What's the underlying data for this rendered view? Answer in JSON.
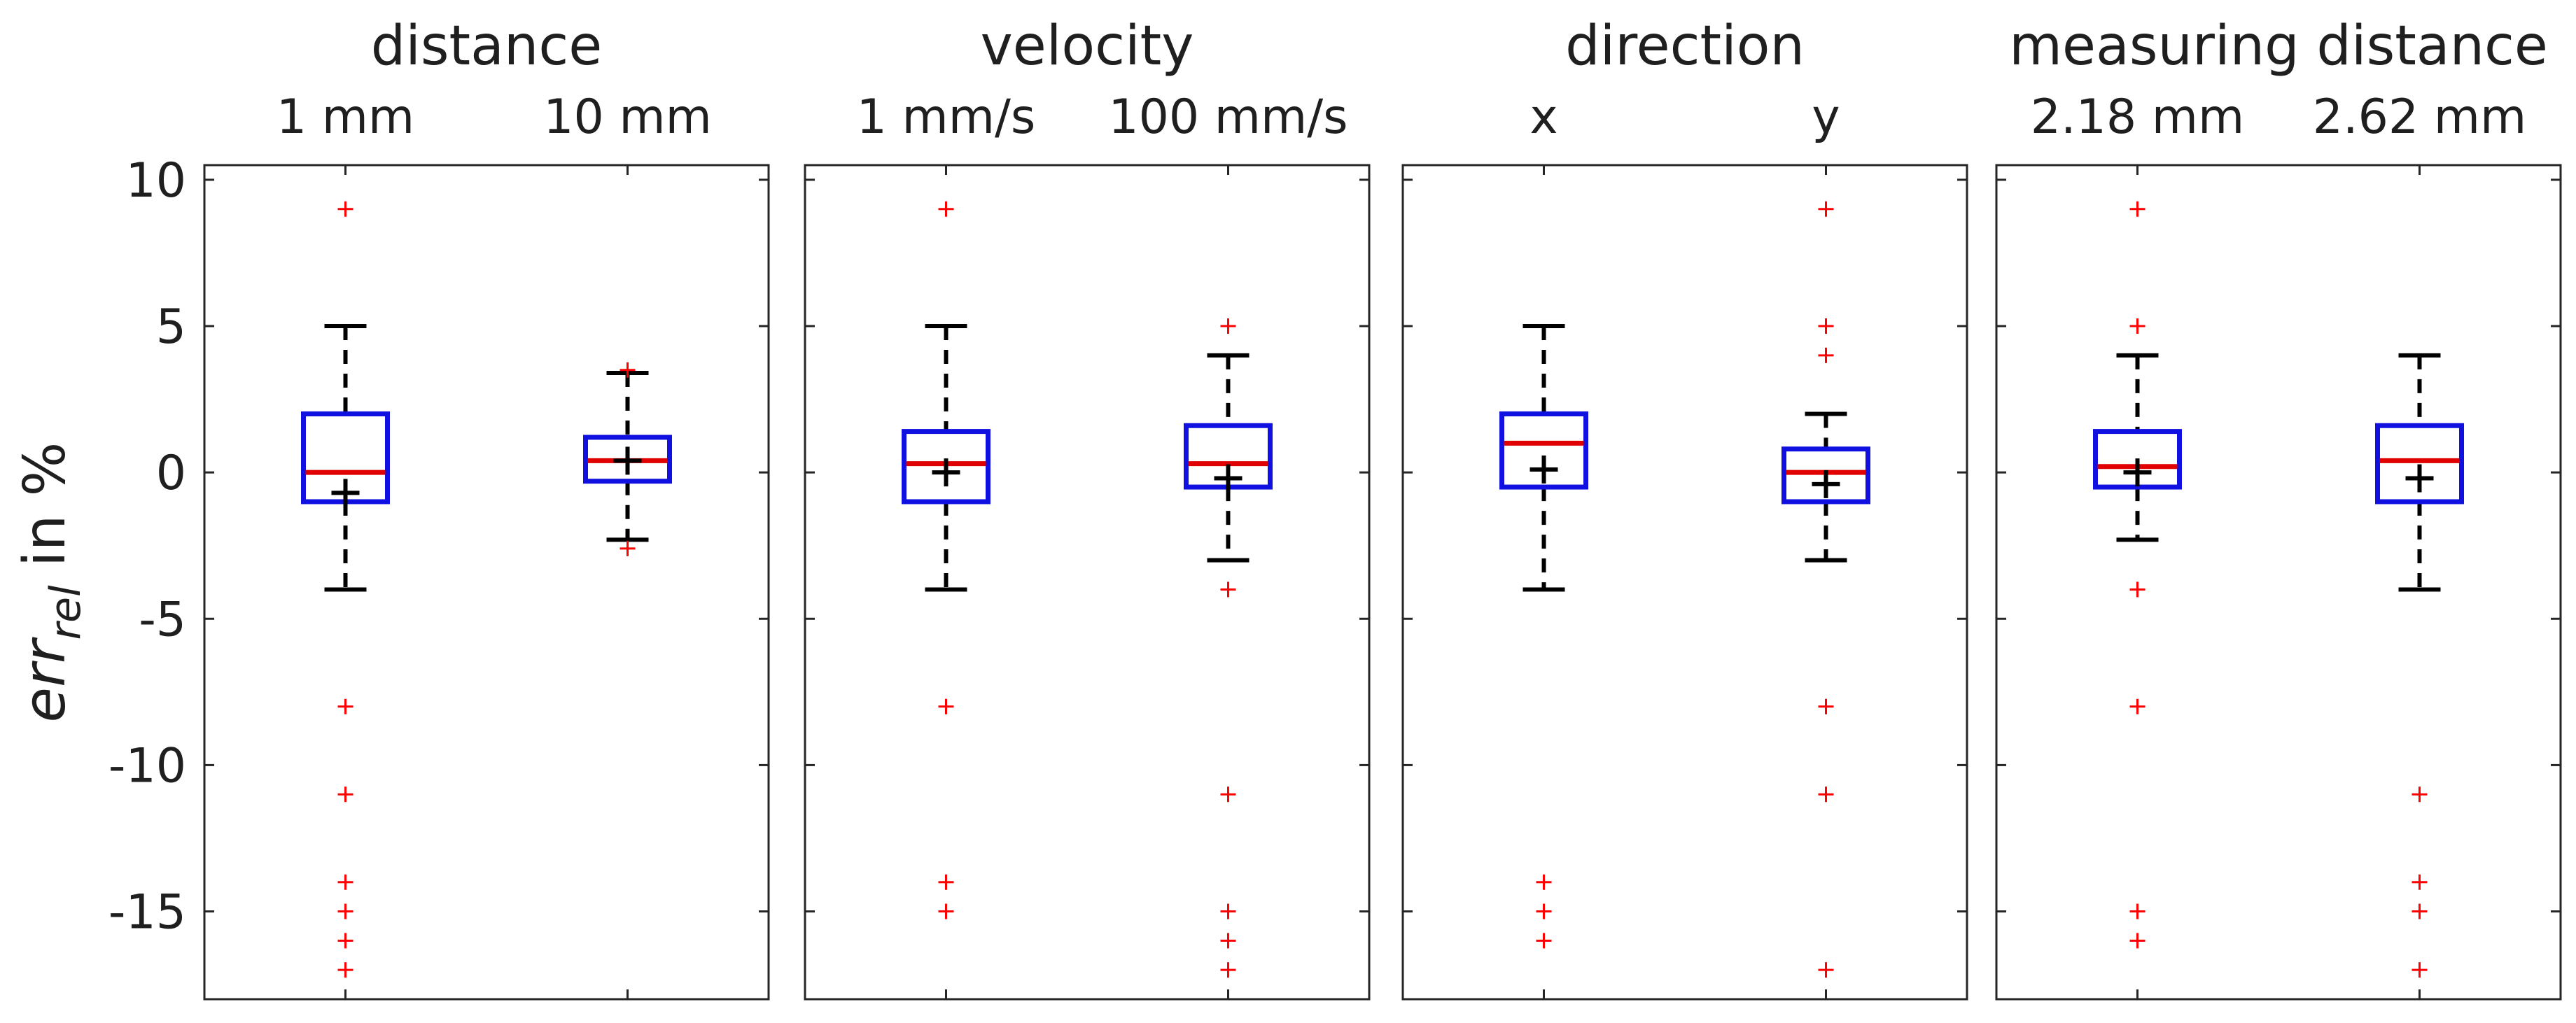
{
  "chart_data": {
    "type": "box",
    "ylabel": "err_rel in %",
    "ylabel_parts": {
      "main": "err",
      "sub": "rel",
      "rest": " in %"
    },
    "ylim": [
      -18,
      10.5
    ],
    "yticks": [
      10,
      5,
      0,
      -5,
      -10,
      -15
    ],
    "ytick_labels": [
      "10",
      "5",
      "0",
      "-5",
      "-10",
      "-15"
    ],
    "colors": {
      "box": "#1010e0",
      "median": "#e00000",
      "whisker": "#000000",
      "mean": "#000000",
      "outlier": "#ff0000",
      "axis": "#262626"
    },
    "panels": [
      {
        "title": "distance",
        "groups": [
          {
            "label": "1 mm",
            "q1": -1,
            "median": 0,
            "q3": 2,
            "whisker_low": -4,
            "whisker_high": 5,
            "mean": -0.7,
            "outliers": [
              9,
              -8,
              -11,
              -14,
              -15,
              -16,
              -17
            ]
          },
          {
            "label": "10 mm",
            "q1": -0.3,
            "median": 0.4,
            "q3": 1.2,
            "whisker_low": -2.3,
            "whisker_high": 3.4,
            "mean": 0.4,
            "outliers": [
              3.5,
              -2.6
            ]
          }
        ]
      },
      {
        "title": "velocity",
        "groups": [
          {
            "label": "1 mm/s",
            "q1": -1,
            "median": 0.3,
            "q3": 1.4,
            "whisker_low": -4,
            "whisker_high": 5,
            "mean": 0,
            "outliers": [
              9,
              -8,
              -14,
              -15
            ]
          },
          {
            "label": "100 mm/s",
            "q1": -0.5,
            "median": 0.3,
            "q3": 1.6,
            "whisker_low": -3,
            "whisker_high": 4,
            "mean": -0.2,
            "outliers": [
              5,
              -4,
              -11,
              -15,
              -16,
              -17
            ]
          }
        ]
      },
      {
        "title": "direction",
        "groups": [
          {
            "label": "x",
            "q1": -0.5,
            "median": 1,
            "q3": 2,
            "whisker_low": -4,
            "whisker_high": 5,
            "mean": 0.1,
            "outliers": [
              -14,
              -15,
              -16
            ]
          },
          {
            "label": "y",
            "q1": -1,
            "median": 0,
            "q3": 0.8,
            "whisker_low": -3,
            "whisker_high": 2,
            "mean": -0.4,
            "outliers": [
              9,
              5,
              4,
              -8,
              -11,
              -17
            ]
          }
        ]
      },
      {
        "title": "measuring distance",
        "groups": [
          {
            "label": "2.18 mm",
            "q1": -0.5,
            "median": 0.2,
            "q3": 1.4,
            "whisker_low": -2.3,
            "whisker_high": 4,
            "mean": 0,
            "outliers": [
              9,
              5,
              -4,
              -8,
              -15,
              -16
            ]
          },
          {
            "label": "2.62 mm",
            "q1": -1,
            "median": 0.4,
            "q3": 1.6,
            "whisker_low": -4,
            "whisker_high": 4,
            "mean": -0.2,
            "outliers": [
              -11,
              -14,
              -15,
              -17
            ]
          }
        ]
      }
    ]
  }
}
